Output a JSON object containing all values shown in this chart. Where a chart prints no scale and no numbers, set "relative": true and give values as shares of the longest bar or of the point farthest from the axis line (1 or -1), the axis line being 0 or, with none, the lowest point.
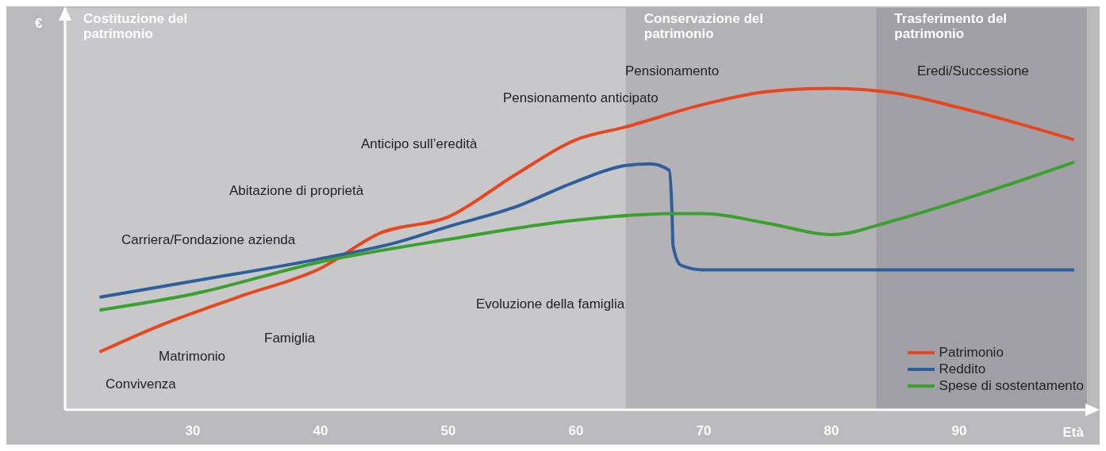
{
  "chart_data": {
    "type": "line",
    "relative": true,
    "xlabel": "Età",
    "ylabel": "€",
    "xlim": [
      20,
      100
    ],
    "xticks": [
      30,
      40,
      50,
      60,
      70,
      80,
      90
    ],
    "legend": "bottom right",
    "grid": false,
    "marker": "none",
    "line_style": "solid",
    "series": [
      {
        "name": "Patrimonio",
        "color": "#e8461e",
        "x": [
          22.7,
          27.3,
          33.5,
          40,
          44.7,
          50,
          55.2,
          60,
          63.9,
          70,
          75,
          80,
          85,
          90,
          99
        ],
        "values": [
          0.18,
          0.26,
          0.35,
          0.44,
          0.55,
          0.6,
          0.73,
          0.84,
          0.88,
          0.95,
          0.99,
          1,
          0.985,
          0.94,
          0.84
        ]
      },
      {
        "name": "Reddito",
        "color": "#2e5f9a",
        "x": [
          22.7,
          30,
          40,
          45.9,
          50,
          55.2,
          60,
          63.9,
          65.8,
          67.3,
          67.5,
          67.6,
          68.2,
          70,
          80,
          90,
          99
        ],
        "values": [
          0.35,
          0.4,
          0.47,
          0.52,
          0.57,
          0.63,
          0.71,
          0.76,
          0.765,
          0.745,
          0.63,
          0.51,
          0.45,
          0.435,
          0.435,
          0.435,
          0.435
        ]
      },
      {
        "name": "Spese di sostentamento",
        "color": "#3aa02e",
        "x": [
          22.7,
          30,
          40,
          50,
          60,
          67.6,
          70,
          75,
          80,
          85,
          90,
          99
        ],
        "values": [
          0.31,
          0.36,
          0.46,
          0.53,
          0.59,
          0.61,
          0.61,
          0.58,
          0.545,
          0.59,
          0.65,
          0.77
        ]
      }
    ],
    "bands": [
      {
        "axis": "x",
        "from": 20,
        "to": 63.9,
        "label": "Costituzione del patrimonio",
        "color": "#c8c8ca"
      },
      {
        "axis": "x",
        "from": 63.9,
        "to": 83.5,
        "label": "Conservazione del patrimonio",
        "color": "#b3b2b6"
      },
      {
        "axis": "x",
        "from": 83.5,
        "to": 100,
        "label": "Trasferimento del patrimonio",
        "color": "#a1a0a6"
      }
    ],
    "annotations": [
      "Convivenza",
      "Matrimonio",
      "Famiglia",
      "Carriera/Fondazione azienda",
      "Abitazione di proprietà",
      "Anticipo sull’eredità",
      "Evoluzione della famiglia",
      "Pensionamento anticipato",
      "Pensionamento",
      "Eredi/Successione"
    ]
  }
}
